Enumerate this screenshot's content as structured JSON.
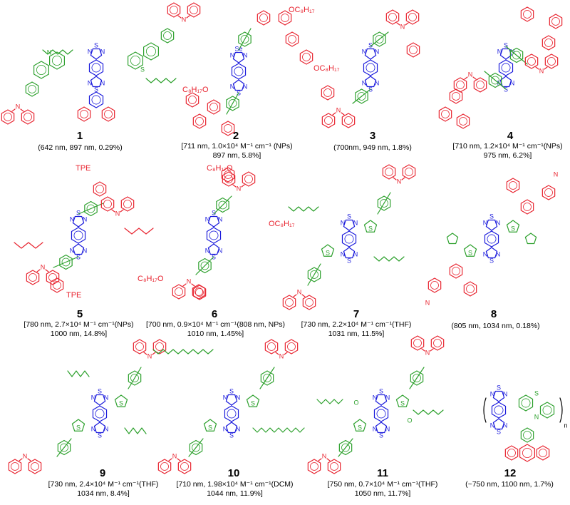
{
  "colors": {
    "donor": "#e8232f",
    "bridge": "#2ca02c",
    "acceptor": "#1a1adc",
    "text": "#000000"
  },
  "compounds": [
    {
      "id": "1",
      "caption": [
        "(642 nm, 897 nm, 0.29%)"
      ]
    },
    {
      "id": "2",
      "caption": [
        "[711 nm, 1.0×10⁴ M⁻¹ cm⁻¹ (NPs)",
        "897 nm, 5.8%]"
      ]
    },
    {
      "id": "3",
      "caption": [
        "(700nm, 949 nm, 1.8%)"
      ]
    },
    {
      "id": "4",
      "caption": [
        "[710 nm, 1.2×10⁴ M⁻¹ cm⁻¹(NPs)",
        "975 nm, 6.2%]"
      ]
    },
    {
      "id": "5",
      "caption": [
        "[780 nm, 2.7×10⁴ M⁻¹ cm⁻¹(NPs)",
        "1000 nm, 14.8%]"
      ]
    },
    {
      "id": "6",
      "caption": [
        "[700 nm, 0.9×10⁴ M⁻¹ cm⁻¹(808 nm, NPs)",
        "1010 nm, 1.45%]"
      ]
    },
    {
      "id": "7",
      "caption": [
        "[730 nm, 2.2×10⁴ M⁻¹ cm⁻¹(THF)",
        "1031 nm, 11.5%]"
      ]
    },
    {
      "id": "8",
      "caption": [
        "(805 nm, 1034 nm, 0.18%)"
      ]
    },
    {
      "id": "9",
      "caption": [
        "[730 nm, 2.4×10⁴ M⁻¹ cm⁻¹(THF)",
        "1034 nm, 8.4%]"
      ]
    },
    {
      "id": "10",
      "caption": [
        "[710 nm, 1.98×10⁴ M⁻¹ cm⁻¹(DCM)",
        "1044 nm, 11.9%]"
      ]
    },
    {
      "id": "11",
      "caption": [
        "[750 nm, 0.7×10⁴ M⁻¹ cm⁻¹(THF)",
        "1050 nm, 11.7%]"
      ]
    },
    {
      "id": "12",
      "caption": [
        "(~750 nm, 1100 nm, 1.7%)"
      ]
    }
  ],
  "labels": {
    "tpe": "TPE",
    "oc8h17": "OC₈H₁₇",
    "c8h17o": "C₈H₁₇O",
    "n_subscript": "n",
    "atoms": {
      "N": "N",
      "S": "S",
      "Se": "Se",
      "O": "O"
    }
  }
}
